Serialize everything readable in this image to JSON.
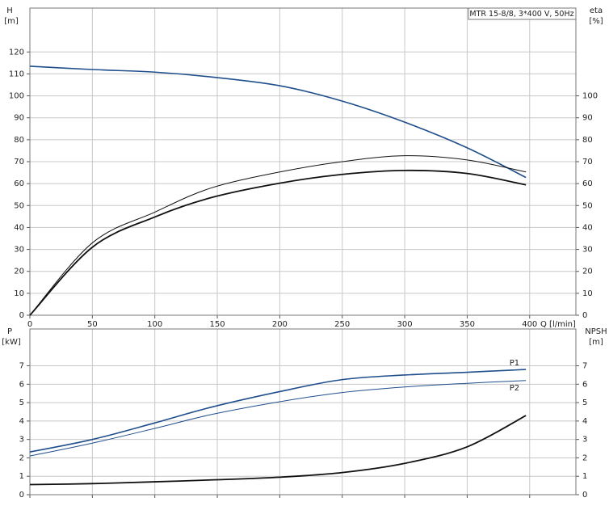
{
  "chart_data": [
    {
      "type": "line",
      "ylabel": "H",
      "yunit": "[m]",
      "y2label": "eta",
      "y2unit": "[%]",
      "xlabel": "Q [l/min]",
      "annotation": "MTR 15-8/8, 3*400 V, 50Hz",
      "x": [
        0,
        50,
        100,
        145,
        200,
        250,
        300,
        350,
        397
      ],
      "xlim": [
        0,
        437
      ],
      "xticks": [
        0,
        50,
        100,
        150,
        200,
        250,
        300,
        350,
        400
      ],
      "ylim": [
        0,
        140
      ],
      "yticks": [
        0,
        10,
        20,
        30,
        40,
        50,
        60,
        70,
        80,
        90,
        100,
        110,
        120
      ],
      "y2lim": [
        0,
        140
      ],
      "y2ticks": [
        0,
        10,
        20,
        30,
        40,
        50,
        60,
        70,
        80,
        90,
        100
      ],
      "grid": true,
      "xtick_labels": true,
      "series": [
        {
          "color": "#1f4e8c",
          "width": 1.6,
          "values": [
            113.5,
            112,
            110.8,
            108.6,
            104.6,
            97.6,
            88,
            76.3,
            62.8
          ]
        },
        {
          "color": "#111111",
          "width": 1,
          "axis": "y2",
          "values": [
            0,
            33,
            47,
            58,
            65.3,
            70,
            72.7,
            70.8,
            65.3
          ]
        },
        {
          "color": "#111111",
          "width": 1.8,
          "axis": "y2",
          "values": [
            0,
            31,
            44.8,
            53.6,
            60.2,
            64.2,
            66,
            64.6,
            59.4
          ]
        }
      ]
    },
    {
      "type": "line",
      "ylabel": "P",
      "yunit": "[kW]",
      "y2label": "NPSH",
      "y2unit": "[m]",
      "x": [
        0,
        50,
        100,
        145,
        200,
        250,
        300,
        350,
        397
      ],
      "xlim": [
        0,
        437
      ],
      "xticks": [
        0,
        50,
        100,
        150,
        200,
        250,
        300,
        350,
        400
      ],
      "ylim": [
        0,
        9
      ],
      "yticks": [
        0,
        1,
        2,
        3,
        4,
        5,
        6,
        7
      ],
      "y2lim": [
        0,
        9
      ],
      "y2ticks": [
        0,
        1,
        2,
        3,
        4,
        5,
        6,
        7
      ],
      "grid": true,
      "xtick_labels": false,
      "series": [
        {
          "name": "P1",
          "color": "#1f4e8c",
          "width": 1.6,
          "values": [
            2.32,
            3.0,
            3.9,
            4.75,
            5.6,
            6.25,
            6.5,
            6.65,
            6.8
          ]
        },
        {
          "name": "P2",
          "color": "#1f4e8c",
          "width": 1,
          "values": [
            2.1,
            2.8,
            3.6,
            4.35,
            5.05,
            5.55,
            5.85,
            6.05,
            6.2
          ]
        },
        {
          "color": "#111111",
          "width": 1.8,
          "axis": "y2",
          "values": [
            0.55,
            0.6,
            0.7,
            0.8,
            0.95,
            1.2,
            1.7,
            2.6,
            4.3
          ]
        }
      ]
    }
  ]
}
